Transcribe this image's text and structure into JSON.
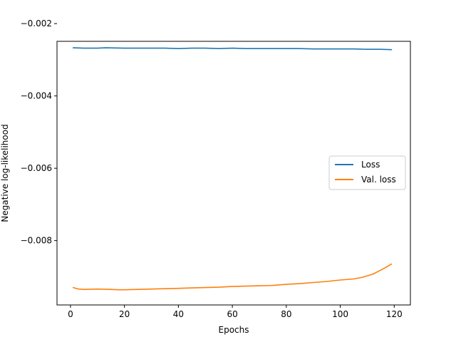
{
  "chart_data": {
    "type": "line",
    "xlabel": "Epochs",
    "ylabel": "Negative log-likelihood",
    "xlim": [
      -5,
      126
    ],
    "ylim": [
      -0.00978,
      -0.00249
    ],
    "x_ticks": [
      0,
      20,
      40,
      60,
      80,
      100,
      120
    ],
    "x_tick_labels": [
      "0",
      "20",
      "40",
      "60",
      "80",
      "100",
      "120"
    ],
    "y_ticks": [
      -0.002,
      -0.004,
      -0.006,
      -0.008
    ],
    "y_tick_labels": [
      "−0.002",
      "−0.004",
      "−0.006",
      "−0.008"
    ],
    "grid": false,
    "legend_position": "center-right",
    "series": [
      {
        "name": "Loss",
        "color": "#1f77b4",
        "x": [
          1,
          5,
          10,
          13,
          20,
          25,
          30,
          35,
          40,
          45,
          50,
          55,
          60,
          65,
          70,
          75,
          80,
          85,
          90,
          95,
          100,
          105,
          110,
          115,
          119
        ],
        "y": [
          -0.00267,
          -0.00268,
          -0.00268,
          -0.00267,
          -0.00268,
          -0.00268,
          -0.00268,
          -0.00268,
          -0.00269,
          -0.00268,
          -0.00268,
          -0.00269,
          -0.00268,
          -0.00269,
          -0.00269,
          -0.00269,
          -0.00269,
          -0.00269,
          -0.0027,
          -0.0027,
          -0.0027,
          -0.0027,
          -0.00271,
          -0.00271,
          -0.00272
        ]
      },
      {
        "name": "Val. loss",
        "color": "#ff7f0e",
        "x": [
          1,
          3,
          5,
          10,
          15,
          18,
          20,
          25,
          30,
          35,
          40,
          45,
          50,
          55,
          60,
          65,
          70,
          75,
          80,
          85,
          90,
          95,
          100,
          105,
          108,
          112,
          116,
          119
        ],
        "y": [
          -0.0093,
          -0.00934,
          -0.00935,
          -0.00934,
          -0.00935,
          -0.00936,
          -0.00936,
          -0.00935,
          -0.00934,
          -0.00933,
          -0.00932,
          -0.00931,
          -0.0093,
          -0.00929,
          -0.00927,
          -0.00926,
          -0.00925,
          -0.00924,
          -0.00921,
          -0.00919,
          -0.00916,
          -0.00913,
          -0.00909,
          -0.00906,
          -0.00902,
          -0.00893,
          -0.00878,
          -0.00865
        ]
      }
    ]
  }
}
